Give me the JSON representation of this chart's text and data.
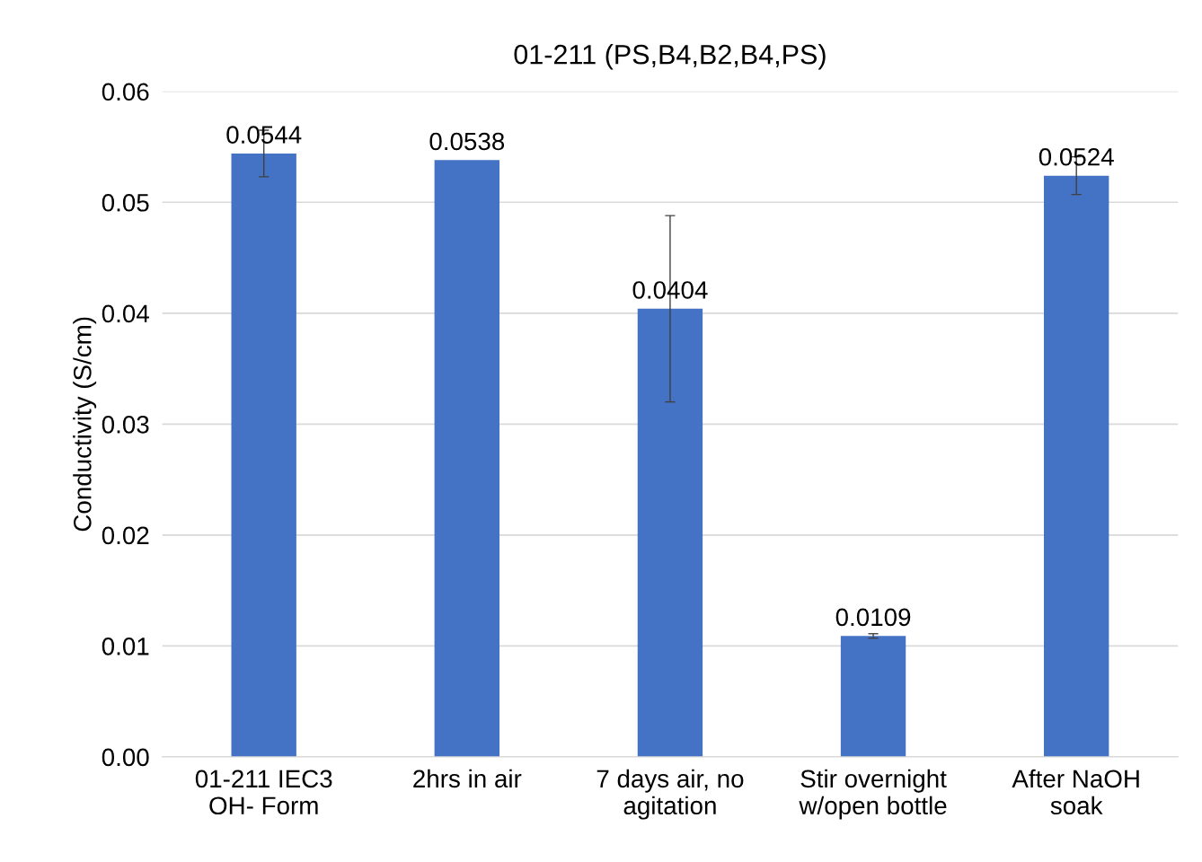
{
  "chart_data": {
    "type": "bar",
    "title": "01-211 (PS,B4,B2,B4,PS)",
    "ylabel": "Conductivity (S/cm)",
    "categories": [
      "01-211 IEC3\nOH- Form",
      "2hrs in air",
      "7 days air, no\nagitation",
      "Stir overnight\nw/open bottle",
      "After NaOH\nsoak"
    ],
    "values": [
      0.0544,
      0.0538,
      0.0404,
      0.0109,
      0.0524
    ],
    "errors": [
      0.0021,
      null,
      0.0084,
      0.0002,
      0.0017
    ],
    "color": "#4472c4",
    "data_labels": true,
    "ylim": [
      0,
      0.06
    ],
    "yticks": [
      {
        "value": 0,
        "label": "0.00"
      },
      0.01,
      0.02,
      0.03,
      0.04,
      0.05,
      0.06
    ],
    "grid": "y"
  }
}
